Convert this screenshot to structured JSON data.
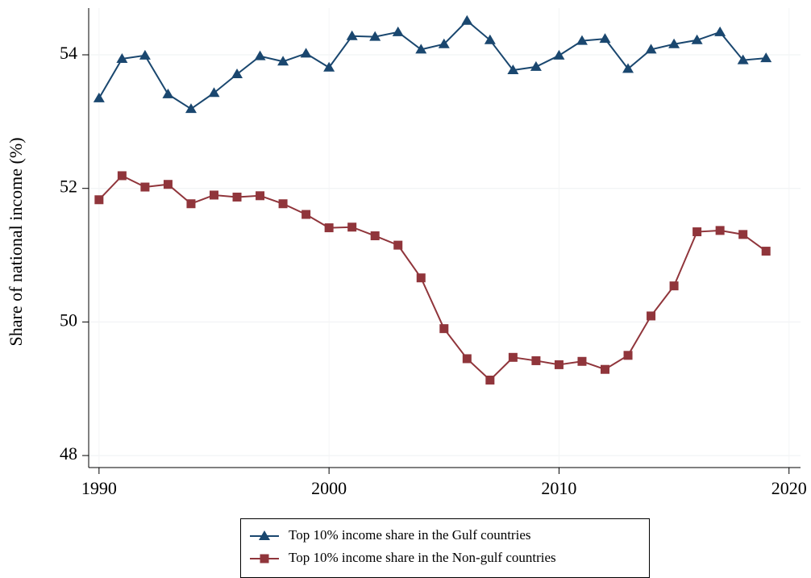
{
  "chart_data": {
    "type": "line",
    "y_label": "Share of national income (%)",
    "x": [
      1990,
      1991,
      1992,
      1993,
      1994,
      1995,
      1996,
      1997,
      1998,
      1999,
      2000,
      2001,
      2002,
      2003,
      2004,
      2005,
      2006,
      2007,
      2008,
      2009,
      2010,
      2011,
      2012,
      2013,
      2014,
      2015,
      2016,
      2017,
      2018,
      2019
    ],
    "series": [
      {
        "name": "Top 10% income share in the Gulf countries",
        "color": "#1a476f",
        "marker": "triangle",
        "values": [
          53.35,
          53.94,
          53.99,
          53.41,
          53.19,
          53.43,
          53.71,
          53.98,
          53.9,
          54.02,
          53.81,
          54.28,
          54.27,
          54.34,
          54.08,
          54.16,
          54.51,
          54.22,
          53.77,
          53.82,
          53.99,
          54.21,
          54.24,
          53.79,
          54.08,
          54.16,
          54.22,
          54.34,
          53.92,
          53.95
        ]
      },
      {
        "name": "Top 10% income share in the Non-gulf countries",
        "color": "#90353b",
        "marker": "square",
        "values": [
          51.83,
          52.19,
          52.02,
          52.06,
          51.77,
          51.9,
          51.87,
          51.89,
          51.77,
          51.61,
          51.41,
          51.42,
          51.29,
          51.15,
          50.66,
          49.9,
          49.45,
          49.13,
          49.47,
          49.42,
          49.36,
          49.41,
          49.29,
          49.5,
          50.09,
          50.54,
          51.35,
          51.37,
          51.31,
          51.06
        ]
      }
    ],
    "xlim": [
      1989.55,
      2020.5
    ],
    "xticks": [
      1990,
      2000,
      2010,
      2020
    ],
    "ylim": [
      47.82,
      54.7
    ],
    "yticks": [
      48,
      50,
      52,
      54
    ],
    "grid": true,
    "legend": "bottom"
  }
}
